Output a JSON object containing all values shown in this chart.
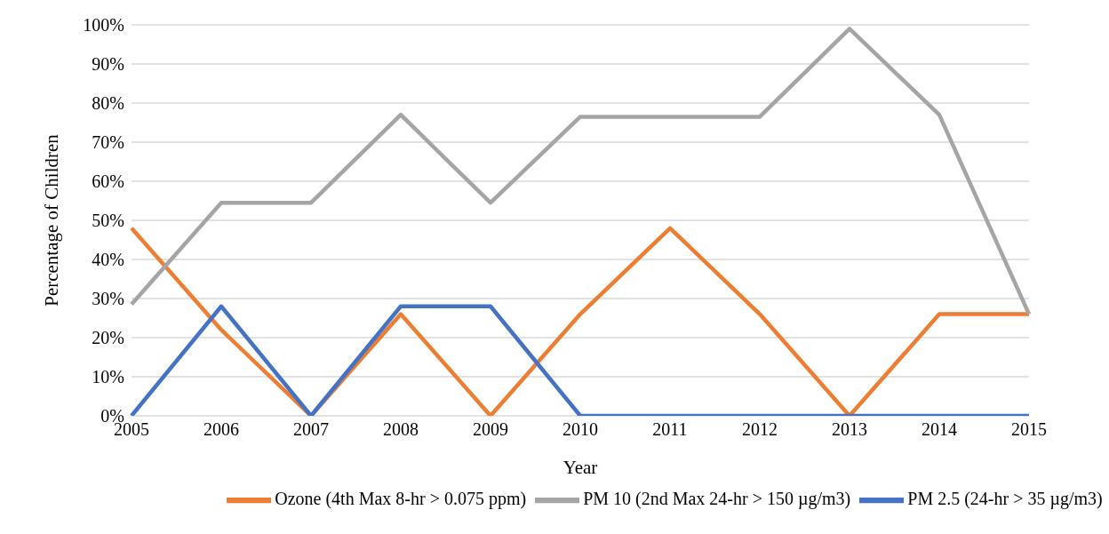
{
  "chart_data": {
    "type": "line",
    "xlabel": "Year",
    "ylabel": "Percentage of Children",
    "categories": [
      "2005",
      "2006",
      "2007",
      "2008",
      "2009",
      "2010",
      "2011",
      "2012",
      "2013",
      "2014",
      "2015"
    ],
    "series": [
      {
        "name": "Ozone (4th Max 8-hr > 0.075 ppm)",
        "color": "#ed7d31",
        "values": [
          48,
          22,
          0,
          26,
          0,
          26,
          48,
          26,
          0,
          26,
          26
        ]
      },
      {
        "name": "PM 10 (2nd Max 24-hr > 150 µg/m3)",
        "color": "#a5a5a5",
        "values": [
          28.5,
          54.5,
          54.5,
          77,
          54.5,
          76.5,
          76.5,
          76.5,
          99,
          77,
          26
        ]
      },
      {
        "name": "PM 2.5 (24-hr > 35 µg/m3)",
        "color": "#4472c4",
        "values": [
          0,
          28,
          0,
          28,
          28,
          0,
          0,
          0,
          0,
          0,
          0
        ]
      }
    ],
    "ylim": [
      0,
      100
    ],
    "yticks": [
      {
        "value": 0,
        "label": "0%"
      },
      {
        "value": 10,
        "label": "10%"
      },
      {
        "value": 20,
        "label": "20%"
      },
      {
        "value": 30,
        "label": "30%"
      },
      {
        "value": 40,
        "label": "40%"
      },
      {
        "value": 50,
        "label": "50%"
      },
      {
        "value": 60,
        "label": "60%"
      },
      {
        "value": 70,
        "label": "70%"
      },
      {
        "value": 80,
        "label": "80%"
      },
      {
        "value": 90,
        "label": "90%"
      },
      {
        "value": 100,
        "label": "100%"
      }
    ],
    "grid": "y",
    "legend": "bottom",
    "marker": "none",
    "line_style": "solid"
  }
}
